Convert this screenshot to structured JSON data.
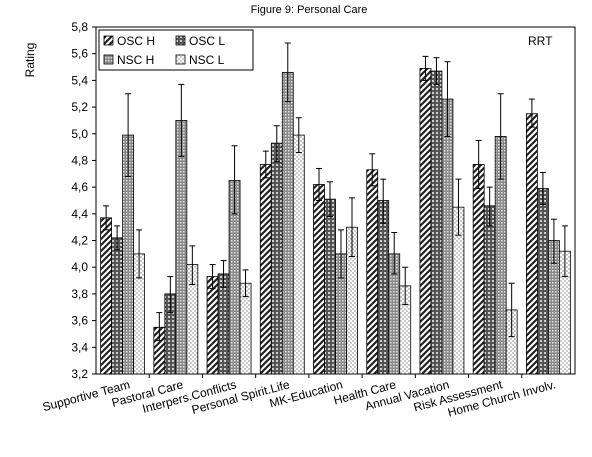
{
  "chart_data": {
    "type": "bar",
    "title": "Figure 9:  Personal Care",
    "ylabel": "Rating",
    "xlabel": "",
    "annotation": "RRT",
    "ylim": [
      3.2,
      5.8
    ],
    "yticks": [
      "3,2",
      "3,4",
      "3,6",
      "3,8",
      "4,0",
      "4,2",
      "4,4",
      "4,6",
      "4,8",
      "5,0",
      "5,2",
      "5,4",
      "5,6",
      "5,8"
    ],
    "categories": [
      "Supportive Team",
      "Pastoral Care",
      "Interpers.Conflicts",
      "Personal Spirit.Life",
      "MK-Education",
      "Health Care",
      "Annual Vacation",
      "Risk Assessment",
      "Home Church Involv."
    ],
    "legend_position": "top-left",
    "grid": false,
    "series": [
      {
        "name": "OSC H",
        "pattern": "diagonal",
        "values": [
          4.37,
          3.55,
          3.93,
          4.77,
          4.62,
          4.73,
          5.49,
          4.77,
          5.15
        ],
        "err_low": [
          4.28,
          3.45,
          3.84,
          4.67,
          4.5,
          4.61,
          5.4,
          4.59,
          5.05
        ],
        "err_high": [
          4.46,
          3.66,
          4.02,
          4.87,
          4.74,
          4.85,
          5.58,
          4.95,
          5.26
        ]
      },
      {
        "name": "OSC L",
        "pattern": "crosshatch",
        "values": [
          4.22,
          3.8,
          3.95,
          4.93,
          4.51,
          4.5,
          5.47,
          4.46,
          4.59
        ],
        "err_low": [
          4.13,
          3.66,
          3.85,
          4.79,
          4.38,
          4.33,
          5.37,
          4.31,
          4.47
        ],
        "err_high": [
          4.31,
          3.93,
          4.05,
          5.06,
          4.64,
          4.66,
          5.57,
          4.6,
          4.71
        ]
      },
      {
        "name": "NSC H",
        "pattern": "grid",
        "values": [
          4.99,
          5.1,
          4.65,
          5.46,
          4.1,
          4.1,
          5.26,
          4.98,
          4.2
        ],
        "err_low": [
          4.68,
          4.83,
          4.4,
          5.24,
          3.92,
          3.95,
          4.98,
          4.66,
          4.03
        ],
        "err_high": [
          5.3,
          5.37,
          4.91,
          5.68,
          4.28,
          4.26,
          5.54,
          5.3,
          4.36
        ]
      },
      {
        "name": "NSC L",
        "pattern": "dotted",
        "values": [
          4.1,
          4.02,
          3.88,
          4.99,
          4.3,
          3.86,
          4.45,
          3.68,
          4.12
        ],
        "err_low": [
          3.92,
          3.87,
          3.78,
          4.86,
          4.08,
          3.72,
          4.24,
          3.48,
          3.93
        ],
        "err_high": [
          4.28,
          4.16,
          3.98,
          5.12,
          4.52,
          4.0,
          4.66,
          3.88,
          4.31
        ]
      }
    ]
  }
}
